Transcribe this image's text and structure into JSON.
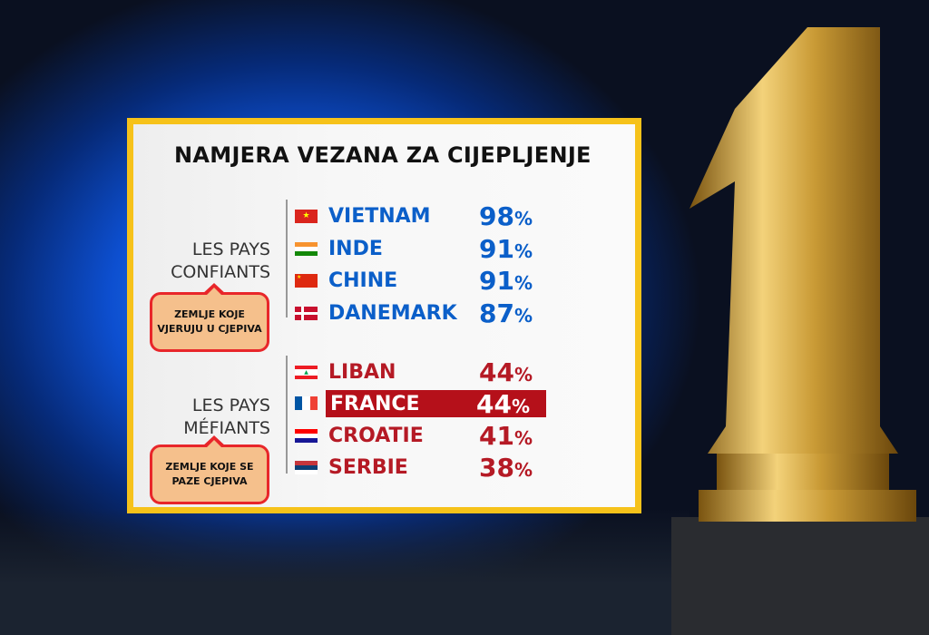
{
  "title": "NAMJERA VEZANA ZA CIJEPLJENJE",
  "groups": [
    {
      "label_line1": "LES PAYS",
      "label_line2": "CONFIANTS",
      "callout": "ZEMLJE KOJE VJERUJU U CJEPIVA",
      "color": "#0b5fc9",
      "rows": [
        {
          "country": "VIETNAM",
          "value": "98",
          "unit": "%",
          "flag": "vietnam-flag"
        },
        {
          "country": "INDE",
          "value": "91",
          "unit": "%",
          "flag": "india-flag"
        },
        {
          "country": "CHINE",
          "value": "91",
          "unit": "%",
          "flag": "china-flag"
        },
        {
          "country": "DANEMARK",
          "value": "87",
          "unit": "%",
          "flag": "denmark-flag"
        }
      ]
    },
    {
      "label_line1": "LES PAYS",
      "label_line2": "MÉFIANTS",
      "callout": "ZEMLJE KOJE SE PAZE CJEPIVA",
      "color": "#b51a25",
      "rows": [
        {
          "country": "LIBAN",
          "value": "44",
          "unit": "%",
          "flag": "lebanon-flag"
        },
        {
          "country": "FRANCE",
          "value": "44",
          "unit": "%",
          "flag": "france-flag",
          "highlighted": true
        },
        {
          "country": "CROATIE",
          "value": "41",
          "unit": "%",
          "flag": "croatia-flag"
        },
        {
          "country": "SERBIE",
          "value": "38",
          "unit": "%",
          "flag": "serbia-flag"
        }
      ]
    }
  ],
  "colors": {
    "border": "#f6c21a",
    "highlight": "#b5101a",
    "callout_bg": "#f5c08c",
    "callout_border": "#e8262a"
  },
  "trophy_numeral": "1"
}
